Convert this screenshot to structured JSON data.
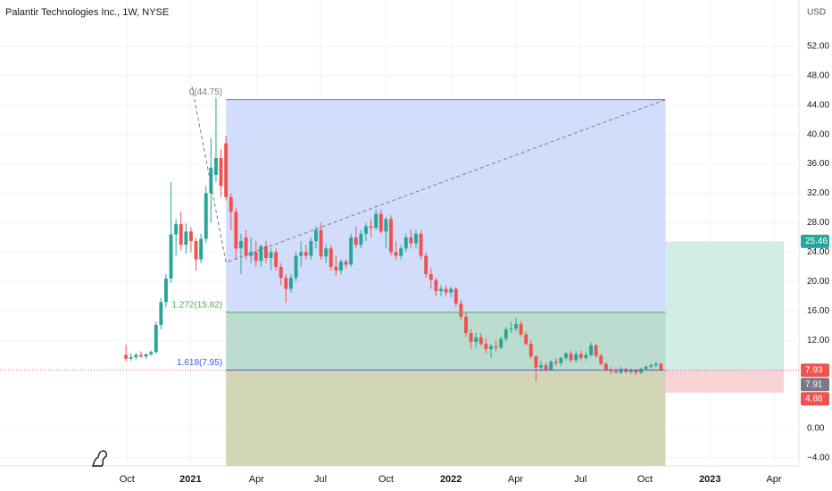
{
  "chart_data": {
    "type": "candlestick",
    "title": "Palantir Technologies Inc., 1W, NYSE",
    "currency": "USD",
    "up_color": "#26a69a",
    "down_color": "#ef5350",
    "grid": true,
    "xlim": [
      -25.2,
      134.6
    ],
    "ylim": [
      -5.1,
      58.3
    ],
    "xticks": [
      {
        "value": 0.2,
        "label": "Oct"
      },
      {
        "value": 12.9,
        "label": "2021"
      },
      {
        "value": 26.1,
        "label": "Apr"
      },
      {
        "value": 38.9,
        "label": "Jul"
      },
      {
        "value": 52.0,
        "label": "Oct"
      },
      {
        "value": 65.0,
        "label": "2022"
      },
      {
        "value": 77.9,
        "label": "Apr"
      },
      {
        "value": 90.9,
        "label": "Jul"
      },
      {
        "value": 103.8,
        "label": "Oct"
      },
      {
        "value": 116.8,
        "label": "2023"
      },
      {
        "value": 129.6,
        "label": "Apr"
      }
    ],
    "yticks": [
      {
        "value": 52,
        "label": "52.00"
      },
      {
        "value": 48,
        "label": "48.00"
      },
      {
        "value": 44,
        "label": "44.00"
      },
      {
        "value": 40,
        "label": "40.00"
      },
      {
        "value": 36,
        "label": "36.00"
      },
      {
        "value": 32,
        "label": "32.00"
      },
      {
        "value": 28,
        "label": "28.00"
      },
      {
        "value": 24,
        "label": "24.00"
      },
      {
        "value": 20,
        "label": "20.00"
      },
      {
        "value": 16,
        "label": "16.00"
      },
      {
        "value": 12,
        "label": "12.00"
      },
      {
        "value": 0,
        "label": "0.00"
      },
      {
        "value": -4,
        "label": "−4.00"
      }
    ],
    "x": [
      0,
      1,
      2,
      3,
      4,
      5,
      6,
      7,
      8,
      9,
      10,
      11,
      12,
      13,
      14,
      15,
      16,
      17,
      18,
      19,
      20,
      21,
      22,
      23,
      24,
      25,
      26,
      27,
      28,
      29,
      30,
      31,
      32,
      33,
      34,
      35,
      36,
      37,
      38,
      39,
      40,
      41,
      42,
      43,
      44,
      45,
      46,
      47,
      48,
      49,
      50,
      51,
      52,
      53,
      54,
      55,
      56,
      57,
      58,
      59,
      60,
      61,
      62,
      63,
      64,
      65,
      66,
      67,
      68,
      69,
      70,
      71,
      72,
      73,
      74,
      75,
      76,
      77,
      78,
      79,
      80,
      81,
      82,
      83,
      84,
      85,
      86,
      87,
      88,
      89,
      90,
      91,
      92,
      93,
      94,
      95,
      96,
      97,
      98,
      99,
      100,
      101,
      102,
      103,
      104,
      105,
      106,
      107
    ],
    "open": [
      10.0,
      9.5,
      9.7,
      10.0,
      9.8,
      10.1,
      10.4,
      14.1,
      17.2,
      20.4,
      26.4,
      27.8,
      25.0,
      26.8,
      25.5,
      23.0,
      25.8,
      32.0,
      34.5,
      36.8,
      38.8,
      31.5,
      29.5,
      24.5,
      26,
      23.5,
      24,
      22.8,
      24.8,
      23.2,
      24,
      22,
      20.5,
      19,
      20.5,
      23.5,
      24,
      23.5,
      25.5,
      27,
      23.4,
      24.5,
      22,
      21.5,
      22.7,
      22.3,
      26,
      25,
      26.5,
      27.5,
      27.3,
      29.2,
      26.8,
      28.5,
      24,
      23.5,
      24.5,
      26,
      25.2,
      26.5,
      23.5,
      21,
      20.2,
      18.7,
      19,
      18.5,
      19,
      17,
      15.2,
      13,
      11.8,
      12.4,
      11.5,
      10.8,
      11.2,
      11,
      12.2,
      13.5,
      13.6,
      14.2,
      12.8,
      11.5,
      9.8,
      8.3,
      8.6,
      8,
      9.1,
      8.9,
      9.6,
      10.2,
      9.3,
      10.1,
      9.6,
      10,
      11.3,
      9.9,
      8.8,
      8,
      7.8,
      7.6,
      8.1,
      7.7,
      7.9,
      7.6,
      8.1,
      8.4,
      8.6,
      8.8
    ],
    "high": [
      11.4,
      10.2,
      10.3,
      10.5,
      10.2,
      10.6,
      14.5,
      17.8,
      21.0,
      33.5,
      28.5,
      29.5,
      27.9,
      27.4,
      26.0,
      26.5,
      33.0,
      39.5,
      45.0,
      38.0,
      39.8,
      32.0,
      30.0,
      26.5,
      27,
      26,
      25.5,
      25,
      25.5,
      24.5,
      24.5,
      22.5,
      21,
      21,
      24,
      25.5,
      25,
      26,
      27.5,
      28,
      25,
      25,
      23.5,
      23,
      23,
      26.5,
      27.5,
      27,
      28,
      28.5,
      29.8,
      29.8,
      28.8,
      29,
      25.5,
      25,
      26.5,
      27,
      27,
      27,
      24,
      21.8,
      20.5,
      19.5,
      19.5,
      19.3,
      19.2,
      17.5,
      15.8,
      13.5,
      13,
      13,
      12.3,
      11.5,
      12,
      12.5,
      13.8,
      14.5,
      15,
      14.6,
      13.2,
      12,
      10,
      9.2,
      9,
      9.3,
      9.6,
      9.8,
      10.5,
      10.6,
      10.5,
      10.6,
      10.4,
      11.7,
      11.5,
      10.2,
      9,
      8.4,
      8.2,
      8.4,
      8.3,
      8.2,
      8.1,
      8.3,
      8.6,
      8.9,
      9.1,
      9.0
    ],
    "low": [
      9.2,
      9.2,
      9.4,
      9.6,
      9.5,
      9.9,
      10.2,
      13.5,
      16.5,
      19.8,
      23.5,
      24.2,
      23.8,
      24.0,
      21.5,
      22.5,
      25.2,
      28.0,
      33.5,
      31.5,
      31.0,
      27.0,
      23.0,
      21.0,
      23,
      22.5,
      22,
      22,
      22.5,
      21.5,
      21.5,
      19.5,
      17.1,
      18.5,
      20,
      22,
      23,
      23,
      24.5,
      23,
      22.5,
      21.5,
      20.8,
      21,
      21.8,
      22,
      24.5,
      24.5,
      25.5,
      26,
      27,
      26.5,
      24.5,
      23.5,
      23,
      23,
      24,
      24.5,
      24.5,
      23,
      20.5,
      19,
      18,
      18,
      18,
      17.8,
      16.5,
      14.8,
      12.5,
      10.8,
      11,
      11.2,
      10.2,
      9.6,
      10.5,
      10.8,
      11.8,
      13,
      13.2,
      12.5,
      11.3,
      9.5,
      6.4,
      7.8,
      7.7,
      7.9,
      8.5,
      8.5,
      9.2,
      9,
      9,
      9.3,
      9.2,
      9.8,
      9.6,
      8.6,
      7.7,
      7.4,
      7.5,
      7.4,
      7.5,
      7.4,
      7.3,
      7.4,
      7.8,
      8.1,
      8.3,
      7.8
    ],
    "close": [
      9.5,
      9.7,
      10.0,
      9.8,
      10.1,
      10.4,
      14.1,
      17.2,
      20.4,
      26.4,
      27.8,
      25.0,
      26.8,
      25.5,
      23.0,
      25.8,
      32.0,
      35.5,
      36.8,
      33.0,
      31.5,
      29.5,
      24.5,
      25.5,
      23.5,
      24.0,
      22.8,
      24.8,
      23.2,
      24.0,
      22,
      20.5,
      19,
      20.5,
      23.5,
      24,
      23.5,
      25.5,
      27,
      23.4,
      24.5,
      22,
      21.5,
      22.7,
      22.3,
      26,
      25,
      26.5,
      27.5,
      27.3,
      29.2,
      26.8,
      28.5,
      24,
      23.5,
      24.5,
      26,
      25.2,
      26.5,
      23.5,
      21,
      20.2,
      18.7,
      19,
      18.5,
      19,
      17,
      15.2,
      13,
      11.8,
      12.4,
      11.5,
      10.8,
      11.2,
      11,
      12.2,
      13.5,
      13.6,
      14.2,
      12.8,
      11.5,
      9.8,
      8.3,
      8.6,
      8,
      9.1,
      8.9,
      9.6,
      10.2,
      9.3,
      10.1,
      9.6,
      10,
      11.3,
      9.9,
      8.8,
      8,
      7.8,
      7.6,
      8.1,
      7.7,
      7.9,
      7.6,
      8.1,
      8.4,
      8.6,
      8.8,
      7.93
    ],
    "fib": {
      "x": [
        20.0,
        107.9
      ],
      "levels": [
        {
          "label": "0(44.75)",
          "price": 44.75,
          "color": "#787b86",
          "zone_color": "#d1ddfb"
        },
        {
          "label": "1.272(15.82)",
          "price": 15.82,
          "color": "#4caf50",
          "zone_color": "#bcdccf"
        },
        {
          "label": "1.618(7.95)",
          "price": 7.95,
          "color": "#2962ff",
          "zone_color": "#d2d6b6"
        }
      ]
    },
    "trend_line": {
      "x": [
        13.2,
        20.0,
        107.9
      ],
      "y": [
        46.5,
        22.6,
        44.75
      ],
      "color": "#787b86"
    },
    "position": {
      "x": [
        107.9,
        131.6
      ],
      "entry": 7.91,
      "target": 25.46,
      "stop": 4.88,
      "entry_color": "#787b86",
      "target_color": "#26a69a",
      "stop_color": "#ef5350",
      "target_zone": "#d2ede6",
      "stop_zone": "#f9d3d5"
    },
    "last_price": 7.93,
    "last_price_color": "#ef5350"
  }
}
